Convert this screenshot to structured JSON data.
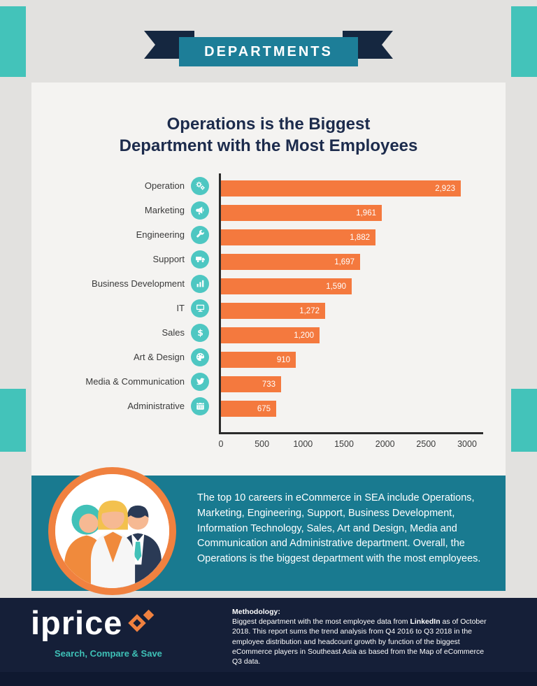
{
  "banner": {
    "label": "DEPARTMENTS"
  },
  "chart": {
    "title_line1": "Operations is the Biggest",
    "title_line2": "Department with the Most Employees"
  },
  "chart_data": {
    "type": "bar",
    "orientation": "horizontal",
    "title": "Operations is the Biggest Department with the Most Employees",
    "categories": [
      "Operation",
      "Marketing",
      "Engineering",
      "Support",
      "Business Development",
      "IT",
      "Sales",
      "Art & Design",
      "Media & Communication",
      "Administrative"
    ],
    "values": [
      2923,
      1961,
      1882,
      1697,
      1590,
      1272,
      1200,
      910,
      733,
      675
    ],
    "value_labels": [
      "2,923",
      "1,961",
      "1,882",
      "1,697",
      "1,590",
      "1,272",
      "1,200",
      "910",
      "733",
      "675"
    ],
    "icons": [
      "gears-icon",
      "megaphone-icon",
      "wrench-icon",
      "truck-icon",
      "bar-chart-icon",
      "monitor-icon",
      "dollar-icon",
      "palette-icon",
      "twitter-icon",
      "calendar-icon"
    ],
    "x_ticks": [
      "0",
      "500",
      "1000",
      "1500",
      "2000",
      "2500",
      "3000"
    ],
    "xlim": [
      0,
      3000
    ],
    "bar_color": "#f4793e",
    "grid": false,
    "legend": false
  },
  "summary": {
    "text": "The top 10 careers in eCommerce in SEA include Operations, Marketing, Engineering, Support, Business Development, Information Technology, Sales, Art and Design, Media and Communication and Administrative department. Overall, the Operations is the biggest department with the most employees."
  },
  "footer": {
    "logo_text": "iprice",
    "tagline": "Search, Compare & Save",
    "methodology_label": "Methodology:",
    "methodology_pre": "Biggest department with the most employee data from ",
    "methodology_bold": "LinkedIn",
    "methodology_post": " as of October 2018. This report sums the trend analysis from Q4 2016 to Q3 2018 in the employee distribution and headcount growth by function of the biggest eCommerce players in Southeast Asia as based from the Map of eCommerce Q3 data."
  }
}
